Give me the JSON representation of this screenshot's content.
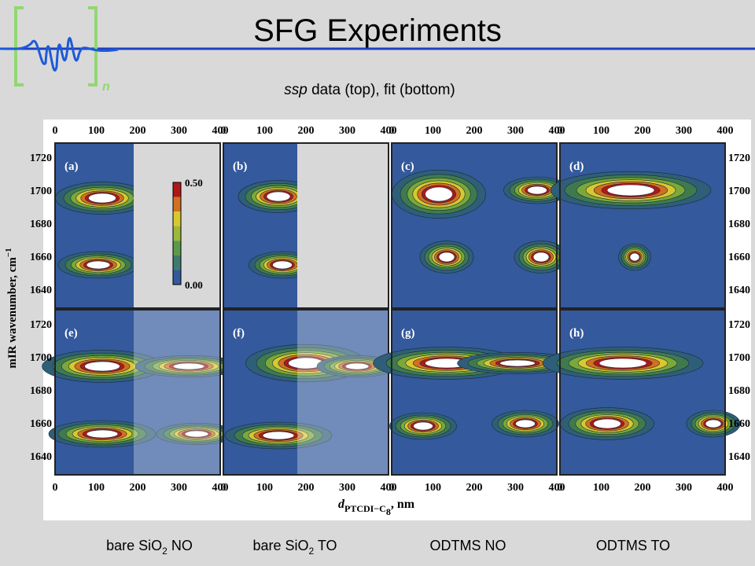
{
  "header": {
    "title": "SFG Experiments",
    "logo_sub": "n"
  },
  "subtitle": {
    "italic": "ssp",
    "rest": " data (top), fit (bottom)"
  },
  "figure": {
    "x_ticks": [
      "0",
      "100",
      "200",
      "300",
      "400"
    ],
    "y_ticks": [
      "1720",
      "1700",
      "1680",
      "1660",
      "1640"
    ],
    "y_label": "mIR wavenumber, cm",
    "y_label_sup": "−1",
    "x_label": {
      "main": "d",
      "sub": "PTCDI−C",
      "subsub": "8",
      "unit": ", nm"
    },
    "panels": [
      "(a)",
      "(b)",
      "(c)",
      "(d)",
      "(e)",
      "(f)",
      "(g)",
      "(h)"
    ],
    "colorbar": [
      "0.50",
      "0.00"
    ]
  },
  "captions": [
    {
      "main": "bare SiO",
      "sub": "2",
      "rest": " NO"
    },
    {
      "main": "bare SiO",
      "sub": "2",
      "rest": " TO"
    },
    {
      "main": "ODTMS NO"
    },
    {
      "main": "ODTMS TO"
    }
  ]
}
